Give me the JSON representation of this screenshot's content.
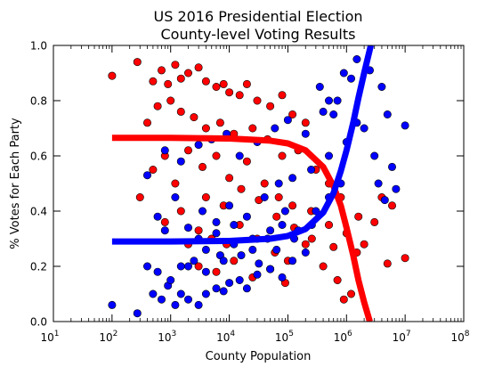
{
  "chart_data": {
    "type": "scatter",
    "title_lines": [
      "US 2016 Presidential Election",
      "County-level Voting Results"
    ],
    "xlabel": "County Population",
    "ylabel": "% Votes for Each Party",
    "x_scale": "log",
    "xlim": [
      10,
      100000000
    ],
    "ylim": [
      0.0,
      1.0
    ],
    "x_ticks": [
      {
        "base": "10",
        "exp": "1"
      },
      {
        "base": "10",
        "exp": "2"
      },
      {
        "base": "10",
        "exp": "3"
      },
      {
        "base": "10",
        "exp": "4"
      },
      {
        "base": "10",
        "exp": "5"
      },
      {
        "base": "10",
        "exp": "6"
      },
      {
        "base": "10",
        "exp": "7"
      },
      {
        "base": "10",
        "exp": "8"
      }
    ],
    "y_ticks": [
      "0.0",
      "0.2",
      "0.4",
      "0.6",
      "0.8",
      "1.0"
    ],
    "y_tick_values": [
      0.0,
      0.2,
      0.4,
      0.6,
      0.8,
      1.0
    ],
    "grid": false,
    "colors": {
      "red_series": "#ff0000",
      "blue_series": "#0000ff",
      "marker_edge": "#000000"
    },
    "series": [
      {
        "color": "red",
        "points": [
          [
            100,
            0.89
          ],
          [
            270,
            0.94
          ],
          [
            500,
            0.87
          ],
          [
            700,
            0.91
          ],
          [
            900,
            0.86
          ],
          [
            1200,
            0.93
          ],
          [
            1500,
            0.88
          ],
          [
            2000,
            0.9
          ],
          [
            3000,
            0.92
          ],
          [
            4000,
            0.87
          ],
          [
            6000,
            0.85
          ],
          [
            8000,
            0.86
          ],
          [
            10000,
            0.83
          ],
          [
            15000,
            0.82
          ],
          [
            20000,
            0.86
          ],
          [
            30000,
            0.8
          ],
          [
            50000,
            0.78
          ],
          [
            80000,
            0.82
          ],
          [
            120000,
            0.75
          ],
          [
            200000,
            0.72
          ],
          [
            400,
            0.72
          ],
          [
            600,
            0.78
          ],
          [
            1000,
            0.8
          ],
          [
            1500,
            0.76
          ],
          [
            2500,
            0.74
          ],
          [
            4000,
            0.7
          ],
          [
            7000,
            0.72
          ],
          [
            12000,
            0.68
          ],
          [
            25000,
            0.7
          ],
          [
            45000,
            0.66
          ],
          [
            80000,
            0.6
          ],
          [
            150000,
            0.62
          ],
          [
            300000,
            0.55
          ],
          [
            500000,
            0.5
          ],
          [
            800000,
            0.45
          ],
          [
            300,
            0.45
          ],
          [
            500,
            0.55
          ],
          [
            800,
            0.6
          ],
          [
            1200,
            0.5
          ],
          [
            2000,
            0.62
          ],
          [
            3500,
            0.56
          ],
          [
            6000,
            0.6
          ],
          [
            10000,
            0.52
          ],
          [
            20000,
            0.58
          ],
          [
            40000,
            0.5
          ],
          [
            70000,
            0.45
          ],
          [
            120000,
            0.42
          ],
          [
            250000,
            0.4
          ],
          [
            500000,
            0.35
          ],
          [
            1000000,
            0.32
          ],
          [
            2000000,
            0.28
          ],
          [
            5000000,
            0.21
          ],
          [
            10000000,
            0.23
          ],
          [
            3000000,
            0.36
          ],
          [
            1500000,
            0.25
          ],
          [
            700000,
            0.15
          ],
          [
            1200000,
            0.1
          ],
          [
            900000,
            0.08
          ],
          [
            800,
            0.36
          ],
          [
            1500,
            0.4
          ],
          [
            3000,
            0.33
          ],
          [
            5000,
            0.3
          ],
          [
            9000,
            0.28
          ],
          [
            15000,
            0.35
          ],
          [
            30000,
            0.3
          ],
          [
            60000,
            0.25
          ],
          [
            100000,
            0.22
          ],
          [
            200000,
            0.28
          ],
          [
            400000,
            0.2
          ],
          [
            3000,
            0.2
          ],
          [
            6000,
            0.18
          ],
          [
            12000,
            0.22
          ],
          [
            25000,
            0.16
          ],
          [
            50000,
            0.19
          ],
          [
            90000,
            0.14
          ],
          [
            2000,
            0.28
          ],
          [
            4000,
            0.45
          ],
          [
            8000,
            0.42
          ],
          [
            16000,
            0.48
          ],
          [
            32000,
            0.44
          ],
          [
            64000,
            0.38
          ],
          [
            128000,
            0.34
          ],
          [
            256000,
            0.3
          ],
          [
            600000,
            0.27
          ],
          [
            1600000,
            0.38
          ],
          [
            4000000,
            0.45
          ],
          [
            6000000,
            0.42
          ]
        ]
      },
      {
        "color": "blue",
        "points": [
          [
            100,
            0.06
          ],
          [
            270,
            0.03
          ],
          [
            500,
            0.1
          ],
          [
            700,
            0.08
          ],
          [
            900,
            0.13
          ],
          [
            1200,
            0.06
          ],
          [
            1500,
            0.1
          ],
          [
            2000,
            0.08
          ],
          [
            3000,
            0.06
          ],
          [
            4000,
            0.1
          ],
          [
            6000,
            0.12
          ],
          [
            8000,
            0.11
          ],
          [
            10000,
            0.14
          ],
          [
            15000,
            0.15
          ],
          [
            20000,
            0.12
          ],
          [
            30000,
            0.17
          ],
          [
            50000,
            0.19
          ],
          [
            80000,
            0.16
          ],
          [
            120000,
            0.22
          ],
          [
            200000,
            0.25
          ],
          [
            400,
            0.2
          ],
          [
            600,
            0.18
          ],
          [
            1000,
            0.15
          ],
          [
            1500,
            0.2
          ],
          [
            2500,
            0.22
          ],
          [
            4000,
            0.26
          ],
          [
            7000,
            0.24
          ],
          [
            12000,
            0.28
          ],
          [
            25000,
            0.26
          ],
          [
            45000,
            0.3
          ],
          [
            80000,
            0.35
          ],
          [
            150000,
            0.33
          ],
          [
            300000,
            0.4
          ],
          [
            500000,
            0.45
          ],
          [
            800000,
            0.5
          ],
          [
            400,
            0.53
          ],
          [
            600,
            0.38
          ],
          [
            800,
            0.33
          ],
          [
            1200,
            0.45
          ],
          [
            2000,
            0.34
          ],
          [
            3500,
            0.4
          ],
          [
            6000,
            0.36
          ],
          [
            10000,
            0.42
          ],
          [
            20000,
            0.38
          ],
          [
            40000,
            0.45
          ],
          [
            70000,
            0.5
          ],
          [
            120000,
            0.52
          ],
          [
            250000,
            0.55
          ],
          [
            500000,
            0.6
          ],
          [
            1000000,
            0.65
          ],
          [
            2000000,
            0.7
          ],
          [
            5000000,
            0.75
          ],
          [
            10000000,
            0.71
          ],
          [
            3000000,
            0.6
          ],
          [
            1500000,
            0.72
          ],
          [
            700000,
            0.8
          ],
          [
            1200000,
            0.88
          ],
          [
            900000,
            0.9
          ],
          [
            1500000,
            0.95
          ],
          [
            2500000,
            0.91
          ],
          [
            4000000,
            0.85
          ],
          [
            350000,
            0.85
          ],
          [
            500000,
            0.8
          ],
          [
            600000,
            0.75
          ],
          [
            800,
            0.62
          ],
          [
            1500,
            0.58
          ],
          [
            3000,
            0.64
          ],
          [
            5000,
            0.66
          ],
          [
            9000,
            0.68
          ],
          [
            15000,
            0.6
          ],
          [
            30000,
            0.65
          ],
          [
            60000,
            0.7
          ],
          [
            100000,
            0.73
          ],
          [
            200000,
            0.68
          ],
          [
            400000,
            0.76
          ],
          [
            3000,
            0.3
          ],
          [
            6000,
            0.32
          ],
          [
            12000,
            0.35
          ],
          [
            25000,
            0.3
          ],
          [
            50000,
            0.33
          ],
          [
            90000,
            0.4
          ],
          [
            2000,
            0.2
          ],
          [
            4000,
            0.18
          ],
          [
            8000,
            0.22
          ],
          [
            16000,
            0.24
          ],
          [
            32000,
            0.21
          ],
          [
            64000,
            0.26
          ],
          [
            128000,
            0.3
          ],
          [
            256000,
            0.35
          ],
          [
            7000000,
            0.48
          ],
          [
            6000000,
            0.56
          ],
          [
            3500000,
            0.5
          ],
          [
            4500000,
            0.44
          ]
        ]
      }
    ],
    "fit_curves": [
      {
        "color": "red",
        "points": [
          [
            100,
            0.665
          ],
          [
            1000,
            0.665
          ],
          [
            10000,
            0.663
          ],
          [
            50000,
            0.655
          ],
          [
            100000,
            0.645
          ],
          [
            200000,
            0.62
          ],
          [
            400000,
            0.56
          ],
          [
            600000,
            0.49
          ],
          [
            800000,
            0.42
          ],
          [
            1000000,
            0.34
          ],
          [
            1300000,
            0.24
          ],
          [
            1600000,
            0.15
          ],
          [
            2000000,
            0.07
          ],
          [
            2500000,
            0.0
          ]
        ]
      },
      {
        "color": "blue",
        "points": [
          [
            100,
            0.29
          ],
          [
            1000,
            0.29
          ],
          [
            10000,
            0.292
          ],
          [
            50000,
            0.3
          ],
          [
            100000,
            0.31
          ],
          [
            200000,
            0.335
          ],
          [
            400000,
            0.395
          ],
          [
            600000,
            0.465
          ],
          [
            800000,
            0.545
          ],
          [
            1000000,
            0.62
          ],
          [
            1300000,
            0.72
          ],
          [
            1600000,
            0.81
          ],
          [
            2000000,
            0.9
          ],
          [
            2600000,
            1.0
          ]
        ]
      }
    ]
  }
}
